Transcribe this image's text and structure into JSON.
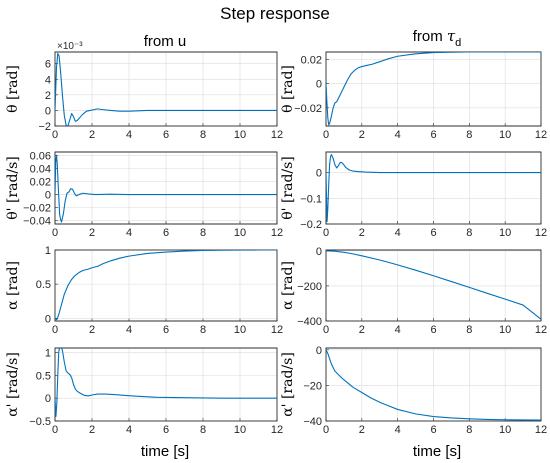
{
  "title": "Step response",
  "columns": [
    {
      "title": "from u"
    },
    {
      "title_main": "from ",
      "title_symbol": "τ",
      "title_sub": "d"
    }
  ],
  "xlabel": "time [s]",
  "chart_data": [
    {
      "type": "line",
      "column": "from u",
      "ylabel": "θ [rad]",
      "exponent": "×10⁻³",
      "xlim": [
        0,
        12
      ],
      "ylim": [
        -2,
        7.5
      ],
      "grid": true,
      "xticks": [
        0,
        2,
        4,
        6,
        8,
        10,
        12
      ],
      "yticks": [
        -2,
        0,
        2,
        4,
        6
      ],
      "x": [
        0,
        0.08,
        0.15,
        0.22,
        0.3,
        0.4,
        0.5,
        0.6,
        0.7,
        0.8,
        0.9,
        1.0,
        1.1,
        1.2,
        1.35,
        1.5,
        1.7,
        1.9,
        2.1,
        2.3,
        2.6,
        3.0,
        3.5,
        4,
        5,
        6,
        8,
        10,
        12
      ],
      "y": [
        0,
        5.5,
        7.3,
        7.0,
        5.0,
        2.0,
        -0.6,
        -1.9,
        -2.0,
        -1.2,
        -0.4,
        -0.8,
        -1.4,
        -1.3,
        -0.9,
        -0.5,
        -0.1,
        0.0,
        0.1,
        0.2,
        0.1,
        0.0,
        -0.1,
        -0.1,
        0,
        0,
        0,
        0,
        0
      ]
    },
    {
      "type": "line",
      "column": "from u",
      "ylabel": "θ' [rad/s]",
      "xlim": [
        0,
        12
      ],
      "ylim": [
        -0.045,
        0.065
      ],
      "grid": true,
      "xticks": [
        0,
        2,
        4,
        6,
        8,
        10,
        12
      ],
      "yticks": [
        -0.04,
        -0.02,
        0,
        0.02,
        0.04,
        0.06
      ],
      "x": [
        0,
        0.04,
        0.08,
        0.12,
        0.18,
        0.25,
        0.3,
        0.35,
        0.45,
        0.55,
        0.65,
        0.75,
        0.85,
        0.95,
        1.05,
        1.15,
        1.3,
        1.5,
        1.8,
        2.2,
        3,
        4,
        6,
        8,
        10,
        12
      ],
      "y": [
        0,
        0.05,
        0.06,
        0.048,
        0.01,
        -0.03,
        -0.038,
        -0.042,
        -0.03,
        -0.01,
        0.002,
        0.004,
        0.009,
        0.008,
        0.002,
        -0.002,
        0,
        0.002,
        0.001,
        0,
        0.0005,
        0,
        0,
        0,
        0,
        0
      ]
    },
    {
      "type": "line",
      "column": "from u",
      "ylabel": "α [rad]",
      "xlim": [
        0,
        12
      ],
      "ylim": [
        -0.04,
        1.0
      ],
      "grid": true,
      "xticks": [
        0,
        2,
        4,
        6,
        8,
        10,
        12
      ],
      "yticks": [
        0,
        0.5,
        1
      ],
      "x": [
        0,
        0.1,
        0.2,
        0.3,
        0.4,
        0.5,
        0.7,
        0.9,
        1.1,
        1.3,
        1.5,
        1.8,
        2.0,
        2.3,
        2.6,
        3.0,
        3.5,
        4,
        5,
        6,
        7,
        8,
        9,
        10,
        11,
        12
      ],
      "y": [
        0,
        -0.02,
        0.05,
        0.15,
        0.25,
        0.35,
        0.48,
        0.57,
        0.63,
        0.67,
        0.7,
        0.72,
        0.74,
        0.76,
        0.8,
        0.84,
        0.88,
        0.91,
        0.95,
        0.97,
        0.985,
        0.993,
        0.997,
        0.999,
        1.0,
        1.0
      ]
    },
    {
      "type": "line",
      "column": "from u",
      "ylabel": "α' [rad/s]",
      "xlim": [
        0,
        12
      ],
      "ylim": [
        -0.5,
        1.1
      ],
      "grid": true,
      "xticks": [
        0,
        2,
        4,
        6,
        8,
        10,
        12
      ],
      "yticks": [
        -0.5,
        0,
        0.5,
        1
      ],
      "x": [
        0,
        0.05,
        0.1,
        0.15,
        0.2,
        0.25,
        0.3,
        0.4,
        0.5,
        0.6,
        0.7,
        0.8,
        0.9,
        1.0,
        1.1,
        1.2,
        1.4,
        1.6,
        1.8,
        2.0,
        2.3,
        2.7,
        3.2,
        3.8,
        4.5,
        5.5,
        7,
        9,
        12
      ],
      "y": [
        0,
        -0.4,
        -0.1,
        0.5,
        1.0,
        1.12,
        1.15,
        1.05,
        0.8,
        0.6,
        0.55,
        0.52,
        0.45,
        0.3,
        0.2,
        0.15,
        0.1,
        0.06,
        0.05,
        0.07,
        0.09,
        0.09,
        0.08,
        0.06,
        0.04,
        0.02,
        0.01,
        0.0,
        0.0
      ]
    },
    {
      "type": "line",
      "column": "from τ_d",
      "ylabel": "θ [rad]",
      "xlim": [
        0,
        12
      ],
      "ylim": [
        -0.035,
        0.026
      ],
      "grid": true,
      "xticks": [
        0,
        2,
        4,
        6,
        8,
        10,
        12
      ],
      "yticks": [
        -0.02,
        0,
        0.02
      ],
      "x": [
        0,
        0.05,
        0.1,
        0.15,
        0.2,
        0.3,
        0.4,
        0.5,
        0.6,
        0.7,
        0.8,
        0.9,
        1.0,
        1.2,
        1.4,
        1.6,
        1.8,
        2.0,
        2.3,
        2.6,
        3.0,
        3.5,
        4,
        5,
        6,
        7,
        8,
        10,
        12
      ],
      "y": [
        0,
        -0.015,
        -0.028,
        -0.034,
        -0.033,
        -0.027,
        -0.02,
        -0.016,
        -0.015,
        -0.012,
        -0.009,
        -0.006,
        -0.003,
        0.003,
        0.008,
        0.011,
        0.013,
        0.014,
        0.015,
        0.016,
        0.018,
        0.0205,
        0.0225,
        0.0245,
        0.0255,
        0.0258,
        0.026,
        0.026,
        0.026
      ]
    },
    {
      "type": "line",
      "column": "from τ_d",
      "ylabel": "θ' [rad/s]",
      "xlim": [
        0,
        12
      ],
      "ylim": [
        -0.2,
        0.08
      ],
      "grid": true,
      "xticks": [
        0,
        2,
        4,
        6,
        8,
        10,
        12
      ],
      "yticks": [
        -0.2,
        -0.1,
        0
      ],
      "x": [
        0,
        0.03,
        0.06,
        0.1,
        0.15,
        0.2,
        0.25,
        0.3,
        0.4,
        0.5,
        0.6,
        0.7,
        0.8,
        0.9,
        1.0,
        1.1,
        1.3,
        1.5,
        1.8,
        2.2,
        2.6,
        3,
        4,
        6,
        8,
        10,
        12
      ],
      "y": [
        0,
        -0.1,
        -0.19,
        -0.14,
        -0.05,
        0.03,
        0.06,
        0.07,
        0.055,
        0.03,
        0.018,
        0.028,
        0.04,
        0.038,
        0.03,
        0.02,
        0.01,
        0.006,
        0.004,
        0.002,
        0.001,
        0.0,
        0.0,
        0,
        0,
        0,
        0
      ]
    },
    {
      "type": "line",
      "column": "from τ_d",
      "ylabel": "α [rad]",
      "xlim": [
        0,
        12
      ],
      "ylim": [
        -400,
        5
      ],
      "grid": true,
      "xticks": [
        0,
        2,
        4,
        6,
        8,
        10,
        12
      ],
      "yticks": [
        -400,
        -200,
        0
      ],
      "x": [
        0,
        0.5,
        1,
        1.5,
        2,
        3,
        4,
        5,
        6,
        7,
        8,
        9,
        10,
        11,
        12
      ],
      "y": [
        0,
        -2,
        -8,
        -17,
        -28,
        -52,
        -80,
        -110,
        -142,
        -175,
        -208,
        -242,
        -275,
        -309,
        -390
      ]
    },
    {
      "type": "line",
      "column": "from τ_d",
      "ylabel": "α' [rad/s]",
      "xlim": [
        0,
        12
      ],
      "ylim": [
        -40,
        1
      ],
      "grid": true,
      "xticks": [
        0,
        2,
        4,
        6,
        8,
        10,
        12
      ],
      "yticks": [
        -40,
        -20,
        0
      ],
      "x": [
        0,
        0.1,
        0.2,
        0.3,
        0.4,
        0.5,
        0.7,
        0.9,
        1.2,
        1.5,
        2,
        2.5,
        3,
        3.5,
        4,
        5,
        6,
        7,
        8,
        9,
        10,
        11,
        12
      ],
      "y": [
        0,
        -2,
        -5,
        -8,
        -10,
        -12,
        -14,
        -16,
        -18.5,
        -21,
        -24,
        -27,
        -29.5,
        -31.5,
        -33.5,
        -36,
        -37.5,
        -38.3,
        -38.8,
        -39.1,
        -39.3,
        -39.4,
        -39.5
      ]
    }
  ]
}
